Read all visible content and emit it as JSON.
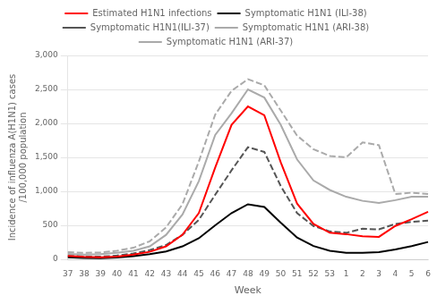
{
  "chart_data": {
    "type": "line",
    "categories": [
      "37",
      "38",
      "39",
      "40",
      "41",
      "42",
      "43",
      "44",
      "45",
      "46",
      "47",
      "48",
      "49",
      "50",
      "51",
      "52",
      "53",
      "1",
      "2",
      "3",
      "4",
      "5",
      "6"
    ],
    "series": [
      {
        "name": "Estimated H1N1 infections",
        "color": "red",
        "line_style": "solid",
        "values": [
          50,
          35,
          30,
          40,
          70,
          110,
          190,
          360,
          680,
          1350,
          1980,
          2250,
          2120,
          1430,
          820,
          520,
          390,
          370,
          340,
          330,
          490,
          590,
          700
        ]
      },
      {
        "name": "Symptomatic H1N1 (ILI-38)",
        "color": "black",
        "line_style": "solid",
        "values": [
          30,
          20,
          18,
          25,
          45,
          75,
          115,
          190,
          310,
          500,
          680,
          810,
          770,
          540,
          320,
          195,
          125,
          95,
          95,
          105,
          145,
          195,
          255
        ]
      },
      {
        "name": "Symptomatic H1N1(ILI-37)",
        "color": "#555555",
        "line_style": "dashed",
        "values": [
          50,
          40,
          38,
          55,
          85,
          135,
          210,
          360,
          580,
          950,
          1310,
          1650,
          1580,
          1080,
          680,
          490,
          410,
          390,
          450,
          440,
          520,
          550,
          570
        ]
      },
      {
        "name": "Symptomatic H1N1 (ARI-38)",
        "color": "#aaaaaa",
        "line_style": "solid",
        "values": [
          80,
          70,
          75,
          95,
          125,
          190,
          360,
          660,
          1150,
          1830,
          2150,
          2500,
          2380,
          1980,
          1470,
          1160,
          1020,
          920,
          860,
          830,
          870,
          920,
          920
        ]
      },
      {
        "name": "Symptomatic H1N1 (ARI-37)",
        "color": "#aaaaaa",
        "line_style": "dashed",
        "values": [
          105,
          95,
          100,
          125,
          170,
          265,
          470,
          810,
          1440,
          2130,
          2480,
          2650,
          2560,
          2190,
          1820,
          1620,
          1520,
          1500,
          1720,
          1680,
          960,
          980,
          960
        ]
      }
    ],
    "xlabel": "Week",
    "ylabel": "Incidence of influenza A(H1N1) cases\n/100,000 population",
    "ylim": [
      0,
      3000
    ],
    "yticks": [
      0,
      500,
      1000,
      1500,
      2000,
      2500,
      3000
    ],
    "grid": "y",
    "legend": "top"
  }
}
